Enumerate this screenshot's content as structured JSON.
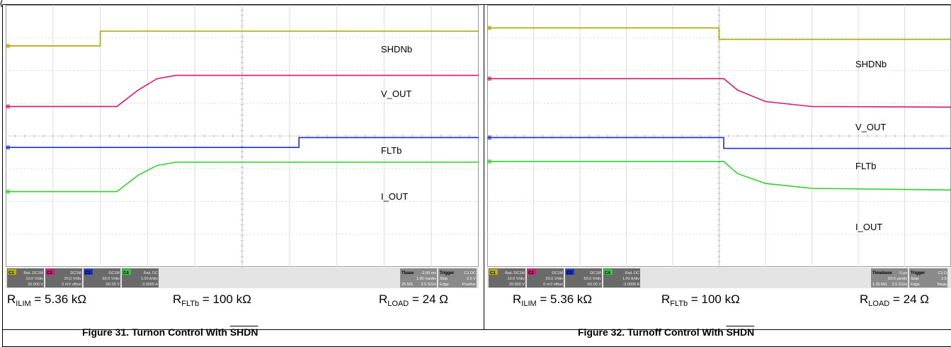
{
  "top_fragment": "(",
  "figures": [
    {
      "id": "fig31",
      "caption_prefix": "Figure 31. Turnon Control With ",
      "caption_signal": "SHDN",
      "params": {
        "r_ilim": {
          "sym": "R",
          "sub": "ILIM",
          "value": " = 5.36 kΩ"
        },
        "r_fltb": {
          "sym": "R",
          "sub": "FLTb",
          "value": " = 100 kΩ"
        },
        "r_load": {
          "sym": "R",
          "sub": "LOAD",
          "value": " = 24 Ω"
        }
      },
      "status": {
        "channels": [
          {
            "tag": "C1",
            "color": "#b5b500",
            "line1": "BwL DC1M",
            "line2": "10.0 V/div",
            "line3": "20.000 V"
          },
          {
            "tag": "C2",
            "color": "#e0157a",
            "line1": "DC1M",
            "line2": "20.0 V/div",
            "line3": "0 mV offset"
          },
          {
            "tag": "C3",
            "color": "#1830d0",
            "line1": "DC1M",
            "line2": "50.0 V/div",
            "line3": "-50.00 V"
          },
          {
            "tag": "C4",
            "color": "#2ecc3a",
            "line1": "BwL DC",
            "line2": "1.00 A/div",
            "line3": "-3.0000 A"
          }
        ],
        "tbase": {
          "title": "Tbase",
          "title_val": "-2.00 ms",
          "line2": "1.00 ms/div",
          "line3_a": "25 MS",
          "line3_b": "2.5 GS/s"
        },
        "trigger": {
          "title": "Trigger",
          "title_val": "C1 DC",
          "line2_a": "Stop",
          "line2_b": "2.5 V",
          "line3_a": "Edge",
          "line3_b": "Positive"
        }
      },
      "chart_data": {
        "type": "line",
        "xlim": [
          0,
          10
        ],
        "ylim": [
          -4,
          4
        ],
        "series": [
          {
            "name": "SHDNb",
            "color": "#a8a800",
            "points": [
              [
                0,
                2.75
              ],
              [
                2.0,
                2.75
              ],
              [
                2.0,
                3.2
              ],
              [
                10,
                3.2
              ]
            ]
          },
          {
            "name": "V_OUT",
            "color": "#d8186e",
            "points": [
              [
                0,
                0.9
              ],
              [
                2.35,
                0.9
              ],
              [
                2.8,
                1.4
              ],
              [
                3.2,
                1.75
              ],
              [
                3.6,
                1.85
              ],
              [
                10,
                1.85
              ]
            ]
          },
          {
            "name": "FLTb",
            "color": "#1f2fd0",
            "points": [
              [
                0,
                -0.35
              ],
              [
                6.2,
                -0.35
              ],
              [
                6.2,
                -0.05
              ],
              [
                10,
                -0.05
              ]
            ]
          },
          {
            "name": "I_OUT",
            "color": "#2ed12e",
            "points": [
              [
                0,
                -1.7
              ],
              [
                2.35,
                -1.7
              ],
              [
                2.8,
                -1.2
              ],
              [
                3.2,
                -0.9
              ],
              [
                3.6,
                -0.8
              ],
              [
                10,
                -0.8
              ]
            ]
          }
        ]
      }
    },
    {
      "id": "fig32",
      "caption_prefix": "Figure 32. Turnoff Control With ",
      "caption_signal": "SHDN",
      "params": {
        "r_ilim": {
          "sym": "R",
          "sub": "ILIM",
          "value": " = 5.36 kΩ"
        },
        "r_fltb": {
          "sym": "R",
          "sub": "FLTb",
          "value": " = 100 kΩ"
        },
        "r_load": {
          "sym": "R",
          "sub": "LOAD",
          "value": " = 24 Ω"
        }
      },
      "status": {
        "channels": [
          {
            "tag": "C1",
            "color": "#b5b500",
            "line1": "BwL DC1M",
            "line2": "10.0 V/div",
            "line3": "20.000 V"
          },
          {
            "tag": "C2",
            "color": "#e0157a",
            "line1": "DC1M",
            "line2": "20.0 V/div",
            "line3": "0 mV offset"
          },
          {
            "tag": "C3",
            "color": "#1830d0",
            "line1": "DC1M",
            "line2": "50.0 V/div",
            "line3": "-50.00 V"
          },
          {
            "tag": "C4",
            "color": "#2ecc3a",
            "line1": "BwL DC",
            "line2": "1.00 A/div",
            "line3": "-3.0000 A"
          }
        ],
        "tbase": {
          "title": "Timebase",
          "title_val": "0 µs",
          "line2": "50.0 µs/div",
          "line3_a": "1.25 MS",
          "line3_b": "2.5 GS/s"
        },
        "trigger": {
          "title": "Trigger",
          "title_val": "C1 D",
          "line2_a": "Stop",
          "line2_b": "2.5",
          "line3_a": "Edge",
          "line3_b": "Nega"
        }
      },
      "chart_data": {
        "type": "line",
        "xlim": [
          -5,
          5
        ],
        "ylim": [
          -4,
          4
        ],
        "series": [
          {
            "name": "SHDNb",
            "color": "#a8a800",
            "points": [
              [
                -5,
                3.3
              ],
              [
                0,
                3.3
              ],
              [
                0,
                2.95
              ],
              [
                5,
                2.95
              ]
            ]
          },
          {
            "name": "V_OUT",
            "color": "#d8186e",
            "points": [
              [
                -5,
                1.75
              ],
              [
                0.1,
                1.75
              ],
              [
                0.4,
                1.4
              ],
              [
                1.0,
                1.05
              ],
              [
                2.0,
                0.9
              ],
              [
                5,
                0.88
              ]
            ]
          },
          {
            "name": "FLTb",
            "color": "#1f2fd0",
            "points": [
              [
                -5,
                -0.05
              ],
              [
                0.1,
                -0.05
              ],
              [
                0.1,
                -0.38
              ],
              [
                5,
                -0.38
              ]
            ]
          },
          {
            "name": "I_OUT",
            "color": "#2ed12e",
            "points": [
              [
                -5,
                -0.78
              ],
              [
                0.1,
                -0.78
              ],
              [
                0.4,
                -1.15
              ],
              [
                1.0,
                -1.45
              ],
              [
                2.0,
                -1.6
              ],
              [
                5,
                -1.65
              ]
            ]
          }
        ]
      }
    }
  ]
}
